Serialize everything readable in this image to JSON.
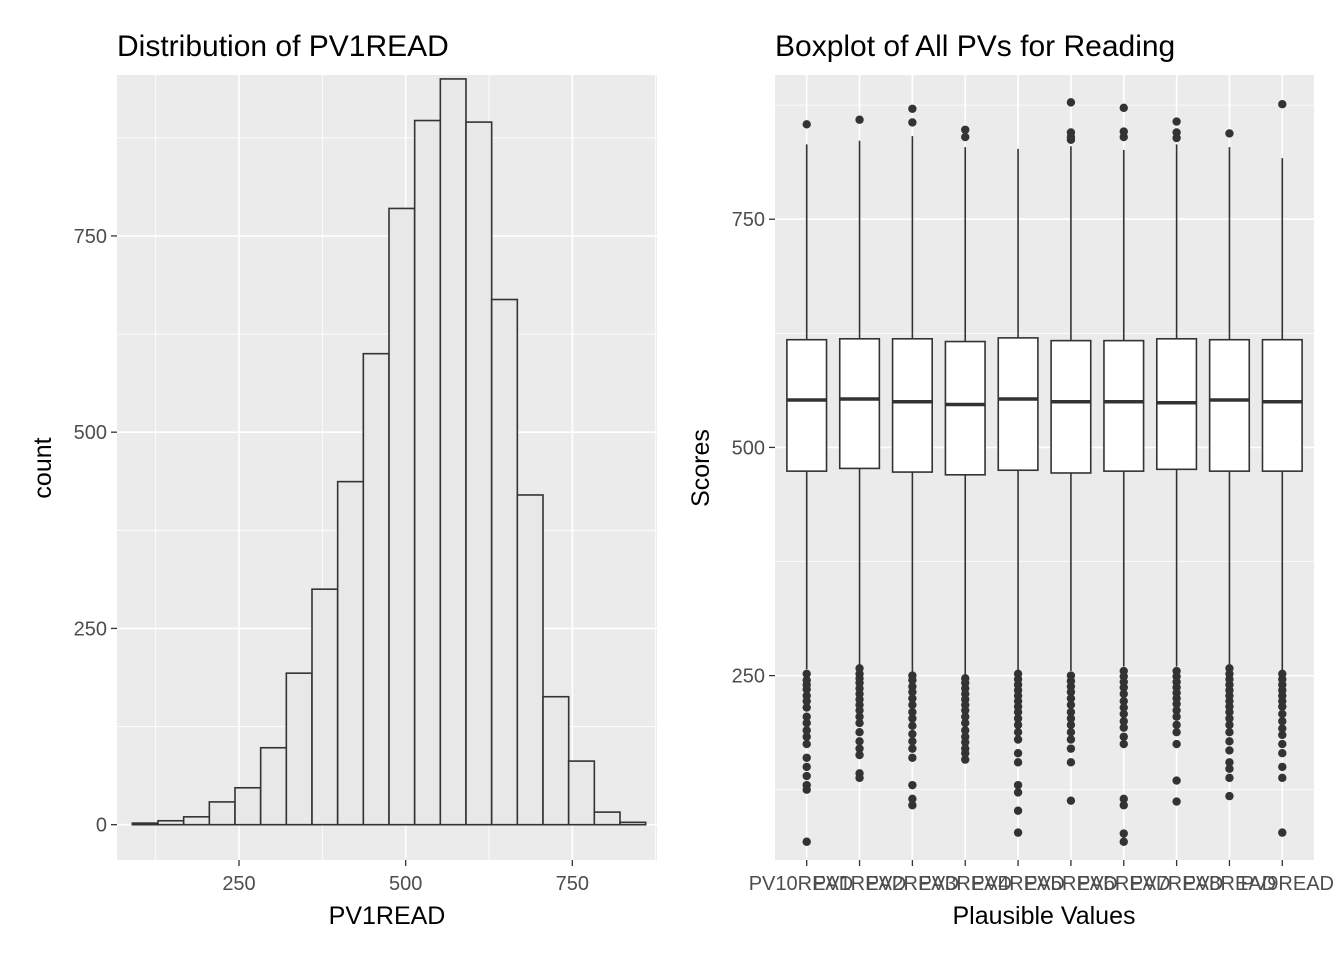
{
  "chart_data": [
    {
      "type": "bar",
      "subtype": "histogram",
      "title": "Distribution of PV1READ",
      "xlabel": "PV1READ",
      "ylabel": "count",
      "xlim": [
        67,
        877
      ],
      "ylim": [
        -45,
        955
      ],
      "x_ticks": [
        250,
        500,
        750
      ],
      "y_ticks": [
        0,
        250,
        500,
        750
      ],
      "bin_width": 38.5,
      "bins": [
        {
          "x0": 90,
          "x1": 128.5,
          "count": 2
        },
        {
          "x0": 128.5,
          "x1": 167,
          "count": 5
        },
        {
          "x0": 167,
          "x1": 205.5,
          "count": 10
        },
        {
          "x0": 205.5,
          "x1": 244,
          "count": 29
        },
        {
          "x0": 244,
          "x1": 282.5,
          "count": 47
        },
        {
          "x0": 282.5,
          "x1": 321,
          "count": 98
        },
        {
          "x0": 321,
          "x1": 359.5,
          "count": 193
        },
        {
          "x0": 359.5,
          "x1": 398,
          "count": 300
        },
        {
          "x0": 398,
          "x1": 436.5,
          "count": 437
        },
        {
          "x0": 436.5,
          "x1": 475,
          "count": 600
        },
        {
          "x0": 475,
          "x1": 513.5,
          "count": 785
        },
        {
          "x0": 513.5,
          "x1": 552,
          "count": 897
        },
        {
          "x0": 552,
          "x1": 590.5,
          "count": 950
        },
        {
          "x0": 590.5,
          "x1": 629,
          "count": 895
        },
        {
          "x0": 629,
          "x1": 667.5,
          "count": 669
        },
        {
          "x0": 667.5,
          "x1": 706,
          "count": 420
        },
        {
          "x0": 706,
          "x1": 744.5,
          "count": 163
        },
        {
          "x0": 744.5,
          "x1": 783,
          "count": 81
        },
        {
          "x0": 783,
          "x1": 821.5,
          "count": 16
        },
        {
          "x0": 821.5,
          "x1": 860,
          "count": 3
        }
      ],
      "grid": true,
      "fill": "#e8e8e8",
      "stroke": "#333333",
      "panel_background": "#ebebeb"
    },
    {
      "type": "box",
      "title": "Boxplot of All PVs for Reading",
      "xlabel": "Plausible Values",
      "ylabel": "Scores",
      "ylim": [
        48,
        908
      ],
      "y_ticks": [
        250,
        500,
        750
      ],
      "grid": true,
      "panel_background": "#ebebeb",
      "categories": [
        "PV10READ",
        "PV1READ",
        "PV2READ",
        "PV3READ",
        "PV4READ",
        "PV5READ",
        "PV6READ",
        "PV7READ",
        "PV8READ",
        "PV9READ"
      ],
      "boxes": [
        {
          "q1": 474,
          "median": 552,
          "q3": 618,
          "lower_whisker": 257,
          "upper_whisker": 832,
          "outliers": [
            854,
            252,
            245,
            240,
            235,
            228,
            222,
            215,
            205,
            198,
            190,
            183,
            175,
            160,
            150,
            140,
            130,
            125,
            68
          ]
        },
        {
          "q1": 477,
          "median": 553,
          "q3": 619,
          "lower_whisker": 261,
          "upper_whisker": 836,
          "outliers": [
            859,
            258,
            252,
            247,
            242,
            236,
            230,
            224,
            218,
            212,
            205,
            198,
            188,
            178,
            170,
            163,
            143,
            138
          ]
        },
        {
          "q1": 473,
          "median": 550,
          "q3": 619,
          "lower_whisker": 254,
          "upper_whisker": 841,
          "outliers": [
            871,
            856,
            250,
            245,
            238,
            232,
            225,
            218,
            210,
            203,
            195,
            186,
            178,
            170,
            160,
            130,
            115,
            108
          ]
        },
        {
          "q1": 470,
          "median": 547,
          "q3": 616,
          "lower_whisker": 250,
          "upper_whisker": 829,
          "outliers": [
            848,
            840,
            247,
            242,
            236,
            230,
            224,
            218,
            212,
            205,
            198,
            190,
            183,
            177,
            170,
            165,
            158
          ]
        },
        {
          "q1": 475,
          "median": 553,
          "q3": 620,
          "lower_whisker": 256,
          "upper_whisker": 827,
          "outliers": [
            252,
            246,
            240,
            234,
            228,
            222,
            216,
            210,
            203,
            196,
            188,
            180,
            165,
            155,
            130,
            122,
            102,
            78
          ]
        },
        {
          "q1": 472,
          "median": 550,
          "q3": 617,
          "lower_whisker": 255,
          "upper_whisker": 830,
          "outliers": [
            878,
            845,
            840,
            837,
            250,
            244,
            238,
            232,
            225,
            218,
            210,
            203,
            196,
            188,
            180,
            170,
            155,
            113
          ]
        },
        {
          "q1": 474,
          "median": 550,
          "q3": 617,
          "lower_whisker": 260,
          "upper_whisker": 826,
          "outliers": [
            872,
            846,
            840,
            255,
            249,
            243,
            237,
            230,
            222,
            215,
            208,
            200,
            193,
            183,
            175,
            115,
            108,
            77,
            68
          ]
        },
        {
          "q1": 476,
          "median": 549,
          "q3": 619,
          "lower_whisker": 260,
          "upper_whisker": 832,
          "outliers": [
            857,
            845,
            839,
            255,
            249,
            243,
            237,
            231,
            225,
            219,
            212,
            205,
            196,
            188,
            175,
            135,
            112
          ]
        },
        {
          "q1": 474,
          "median": 552,
          "q3": 618,
          "lower_whisker": 262,
          "upper_whisker": 829,
          "outliers": [
            844,
            258,
            252,
            246,
            240,
            234,
            228,
            222,
            216,
            210,
            203,
            196,
            188,
            178,
            168,
            155,
            148,
            138,
            118
          ]
        },
        {
          "q1": 474,
          "median": 550,
          "q3": 618,
          "lower_whisker": 256,
          "upper_whisker": 817,
          "outliers": [
            876,
            252,
            246,
            240,
            234,
            228,
            222,
            216,
            208,
            200,
            192,
            185,
            175,
            165,
            150,
            138,
            78
          ]
        }
      ]
    }
  ]
}
